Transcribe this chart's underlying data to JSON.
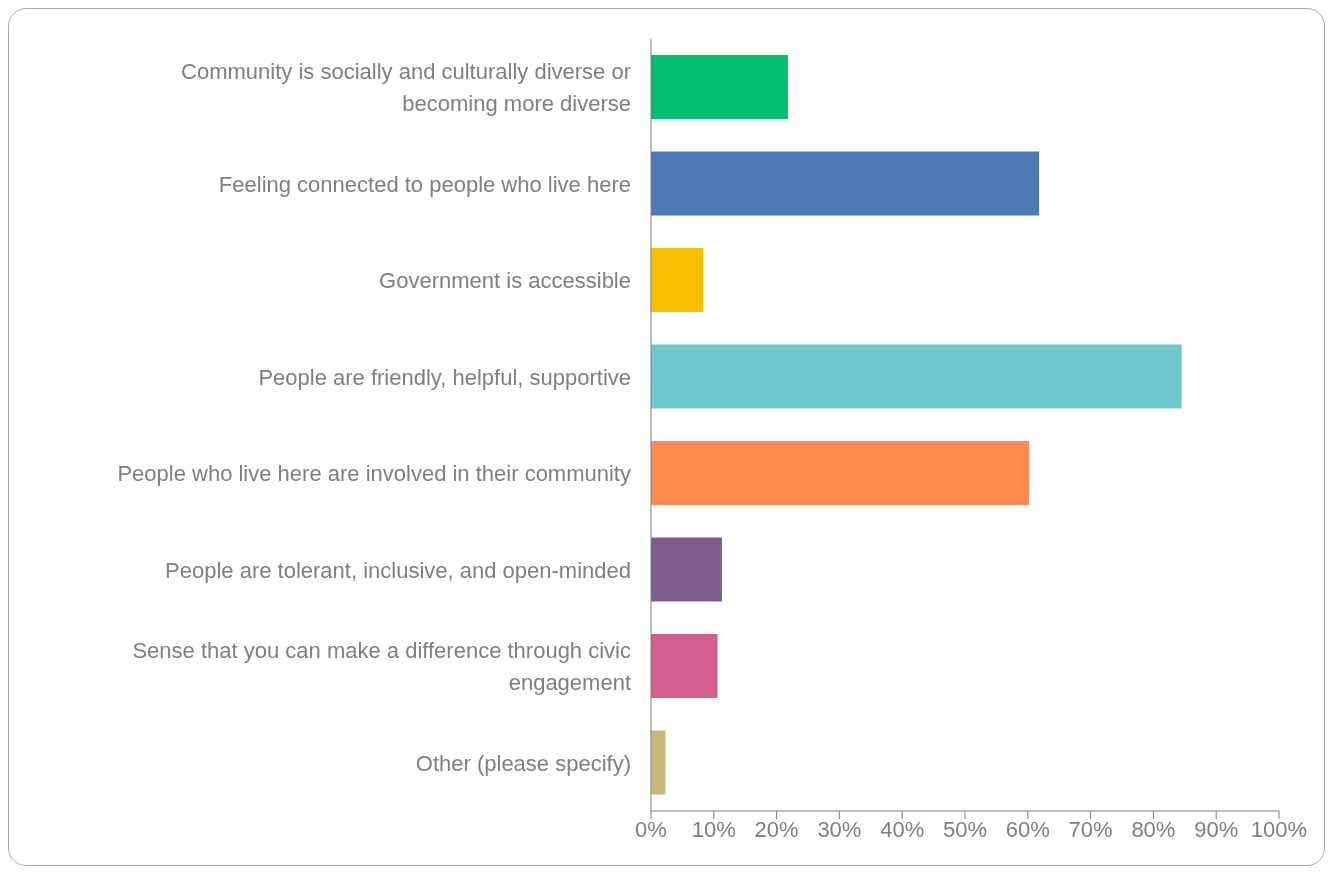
{
  "chart_data": {
    "type": "bar",
    "orientation": "horizontal",
    "categories": [
      "Community is socially and culturally diverse or becoming more diverse",
      "Feeling connected to people who live here",
      "Government is accessible",
      "People are friendly, helpful, supportive",
      "People who live here are involved in their community",
      "People are tolerant, inclusive, and open-minded",
      "Sense that you can make a difference through civic engagement",
      "Other (please specify)"
    ],
    "values": [
      21.8,
      61.8,
      8.3,
      84.5,
      60.2,
      11.3,
      10.6,
      2.3
    ],
    "colors": [
      "#00bf6f",
      "#4e7ab4",
      "#f8be00",
      "#6cc8cc",
      "#ff8b50",
      "#7c5d90",
      "#d45e8e",
      "#c8b878"
    ],
    "xlim": [
      0,
      100
    ],
    "xticks": [
      {
        "value": 0,
        "label": "0%"
      },
      {
        "value": 10,
        "label": "10%"
      },
      {
        "value": 20,
        "label": "20%"
      },
      {
        "value": 30,
        "label": "30%"
      },
      {
        "value": 40,
        "label": "40%"
      },
      {
        "value": 50,
        "label": "50%"
      },
      {
        "value": 60,
        "label": "60%"
      },
      {
        "value": 70,
        "label": "70%"
      },
      {
        "value": 80,
        "label": "80%"
      },
      {
        "value": 90,
        "label": "90%"
      },
      {
        "value": 100,
        "label": "100%"
      }
    ],
    "grid": false,
    "legend": false
  }
}
